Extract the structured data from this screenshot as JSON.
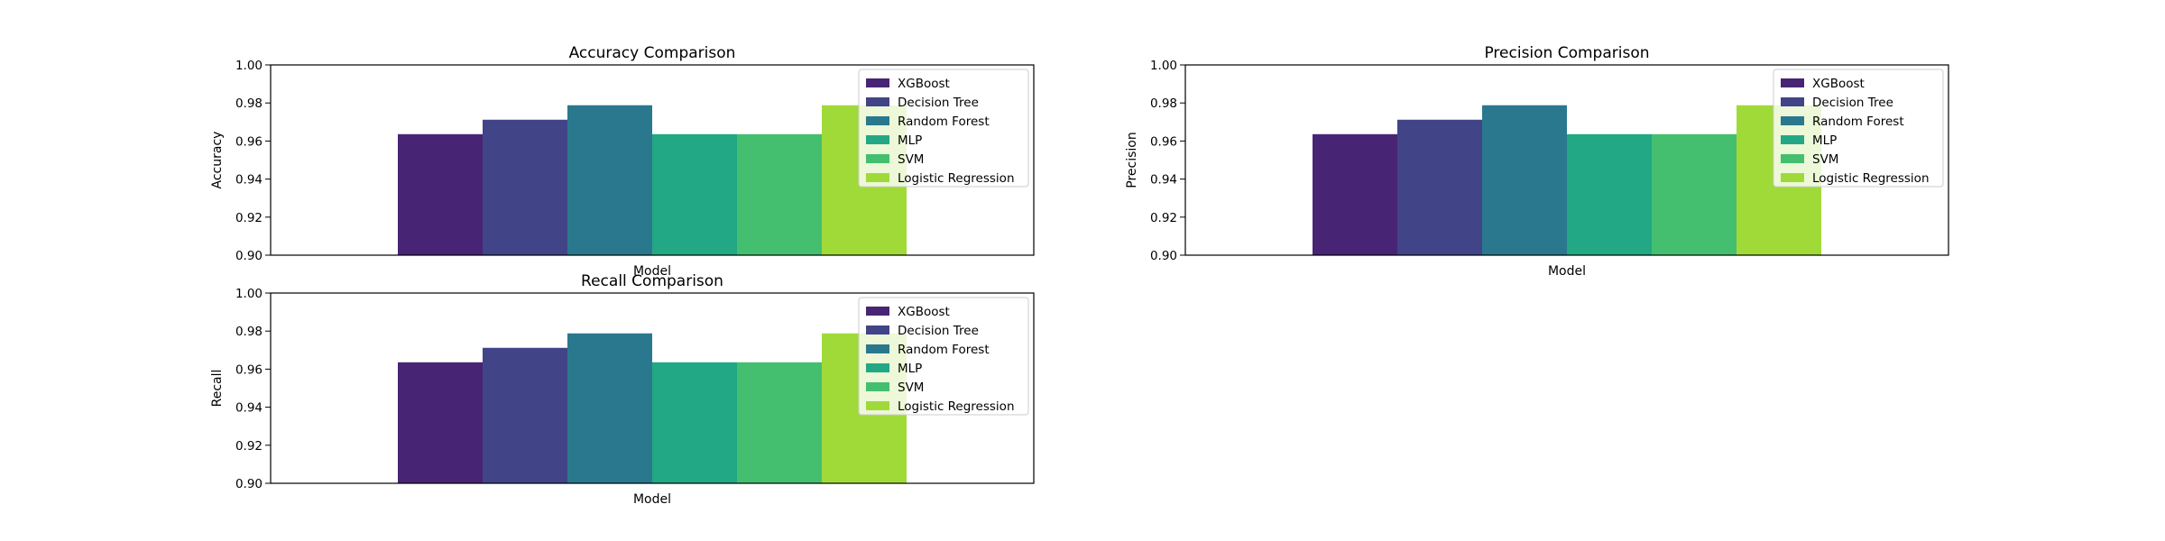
{
  "palette": [
    "#482475",
    "#414487",
    "#2a788e",
    "#22a884",
    "#44bf70",
    "#a0da39"
  ],
  "chart_data": [
    {
      "type": "bar",
      "title": "Accuracy Comparison",
      "xlabel": "Model",
      "ylabel": "Accuracy",
      "ylim": [
        0.9,
        1.0
      ],
      "yticks": [
        "0.90",
        "0.92",
        "0.94",
        "0.96",
        "0.98",
        "1.00"
      ],
      "legend_position": "upper right",
      "series": [
        {
          "name": "XGBoost",
          "value": 0.9636
        },
        {
          "name": "Decision Tree",
          "value": 0.9712
        },
        {
          "name": "Random Forest",
          "value": 0.9788
        },
        {
          "name": "MLP",
          "value": 0.9636
        },
        {
          "name": "SVM",
          "value": 0.9636
        },
        {
          "name": "Logistic Regression",
          "value": 0.9788
        }
      ]
    },
    {
      "type": "bar",
      "title": "Precision Comparison",
      "xlabel": "Model",
      "ylabel": "Precision",
      "ylim": [
        0.9,
        1.0
      ],
      "yticks": [
        "0.90",
        "0.92",
        "0.94",
        "0.96",
        "0.98",
        "1.00"
      ],
      "legend_position": "upper right",
      "series": [
        {
          "name": "XGBoost",
          "value": 0.9636
        },
        {
          "name": "Decision Tree",
          "value": 0.9712
        },
        {
          "name": "Random Forest",
          "value": 0.9788
        },
        {
          "name": "MLP",
          "value": 0.9636
        },
        {
          "name": "SVM",
          "value": 0.9636
        },
        {
          "name": "Logistic Regression",
          "value": 0.9788
        }
      ]
    },
    {
      "type": "bar",
      "title": "Recall Comparison",
      "xlabel": "Model",
      "ylabel": "Recall",
      "ylim": [
        0.9,
        1.0
      ],
      "yticks": [
        "0.90",
        "0.92",
        "0.94",
        "0.96",
        "0.98",
        "1.00"
      ],
      "legend_position": "upper right",
      "series": [
        {
          "name": "XGBoost",
          "value": 0.9636
        },
        {
          "name": "Decision Tree",
          "value": 0.9712
        },
        {
          "name": "Random Forest",
          "value": 0.9788
        },
        {
          "name": "MLP",
          "value": 0.9636
        },
        {
          "name": "SVM",
          "value": 0.9636
        },
        {
          "name": "Logistic Regression",
          "value": 0.9788
        }
      ]
    }
  ]
}
